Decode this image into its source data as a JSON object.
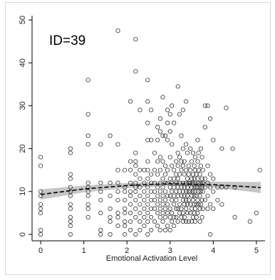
{
  "chart_data": {
    "type": "scatter",
    "annotation": "ID=39",
    "xlabel": "Emotional Activation Level",
    "ylabel": "",
    "xlim": [
      -0.2,
      5.2
    ],
    "ylim": [
      -1.5,
      51
    ],
    "x_ticks": [
      {
        "value": 0,
        "label": "0"
      },
      {
        "value": 1,
        "label": "1"
      },
      {
        "value": 2,
        "label": "2"
      },
      {
        "value": 3,
        "label": "3"
      },
      {
        "value": 4,
        "label": "4"
      },
      {
        "value": 5,
        "label": "5"
      }
    ],
    "y_ticks": [
      {
        "value": 0,
        "label": "0"
      },
      {
        "value": 10,
        "label": "10"
      },
      {
        "value": 20,
        "label": "20"
      },
      {
        "value": 30,
        "label": "30"
      },
      {
        "value": 40,
        "label": "40"
      },
      {
        "value": 50,
        "label": "50"
      }
    ],
    "grid": false,
    "marker": "hollow-circle",
    "colors": {
      "marker": "#333333",
      "fit_line": "#000000",
      "ci_band": "#b3b3b3",
      "axis": "#000000"
    },
    "points": [
      [
        0,
        18
      ],
      [
        0,
        16
      ],
      [
        0,
        10
      ],
      [
        0,
        9
      ],
      [
        0,
        7
      ],
      [
        0,
        6
      ],
      [
        0,
        5
      ],
      [
        0,
        1
      ],
      [
        0,
        0
      ],
      [
        0.69,
        20
      ],
      [
        0.69,
        19
      ],
      [
        0.69,
        14
      ],
      [
        0.69,
        13
      ],
      [
        0.69,
        11
      ],
      [
        0.69,
        10
      ],
      [
        0.69,
        9
      ],
      [
        0.69,
        7
      ],
      [
        0.69,
        6
      ],
      [
        0.69,
        4
      ],
      [
        0.69,
        3
      ],
      [
        0.69,
        2
      ],
      [
        0.69,
        0
      ],
      [
        1.1,
        36
      ],
      [
        1.1,
        28
      ],
      [
        1.1,
        23
      ],
      [
        1.1,
        21
      ],
      [
        1.1,
        12
      ],
      [
        1.1,
        11
      ],
      [
        1.1,
        10
      ],
      [
        1.1,
        9
      ],
      [
        1.1,
        7
      ],
      [
        1.1,
        6
      ],
      [
        1.1,
        4
      ],
      [
        1.39,
        21
      ],
      [
        1.39,
        12
      ],
      [
        1.39,
        10
      ],
      [
        1.39,
        8
      ],
      [
        1.39,
        5
      ],
      [
        1.39,
        1
      ],
      [
        1.39,
        0
      ],
      [
        1.61,
        23
      ],
      [
        1.61,
        12
      ],
      [
        1.61,
        9
      ],
      [
        1.61,
        6
      ],
      [
        1.61,
        4
      ],
      [
        1.61,
        3
      ],
      [
        1.61,
        0
      ],
      [
        1.79,
        47.5
      ],
      [
        1.79,
        21
      ],
      [
        1.79,
        15
      ],
      [
        1.79,
        12
      ],
      [
        1.79,
        10
      ],
      [
        1.79,
        8
      ],
      [
        1.79,
        5
      ],
      [
        1.79,
        4
      ],
      [
        1.79,
        2
      ],
      [
        1.95,
        15
      ],
      [
        1.95,
        11
      ],
      [
        1.95,
        10
      ],
      [
        1.95,
        8
      ],
      [
        1.95,
        6
      ],
      [
        1.95,
        5
      ],
      [
        1.95,
        3
      ],
      [
        1.95,
        2
      ],
      [
        1.95,
        0
      ],
      [
        2.08,
        31
      ],
      [
        2.08,
        17
      ],
      [
        2.08,
        15
      ],
      [
        2.08,
        12
      ],
      [
        2.08,
        10
      ],
      [
        2.08,
        9
      ],
      [
        2.08,
        7
      ],
      [
        2.08,
        5
      ],
      [
        2.08,
        3
      ],
      [
        2.08,
        1
      ],
      [
        2.2,
        45.5
      ],
      [
        2.2,
        38
      ],
      [
        2.2,
        19
      ],
      [
        2.2,
        17
      ],
      [
        2.2,
        16
      ],
      [
        2.2,
        14
      ],
      [
        2.2,
        12
      ],
      [
        2.2,
        11
      ],
      [
        2.2,
        10
      ],
      [
        2.2,
        8
      ],
      [
        2.2,
        6
      ],
      [
        2.2,
        4
      ],
      [
        2.2,
        0
      ],
      [
        2.3,
        29
      ],
      [
        2.3,
        15
      ],
      [
        2.3,
        13
      ],
      [
        2.3,
        11
      ],
      [
        2.3,
        9
      ],
      [
        2.3,
        7
      ],
      [
        2.3,
        5
      ],
      [
        2.3,
        3
      ],
      [
        2.3,
        1
      ],
      [
        2.4,
        15
      ],
      [
        2.4,
        12
      ],
      [
        2.4,
        10
      ],
      [
        2.4,
        8
      ],
      [
        2.4,
        6
      ],
      [
        2.4,
        4
      ],
      [
        2.4,
        2
      ],
      [
        2.48,
        36
      ],
      [
        2.48,
        31
      ],
      [
        2.48,
        26
      ],
      [
        2.48,
        22
      ],
      [
        2.48,
        17
      ],
      [
        2.48,
        15
      ],
      [
        2.48,
        13
      ],
      [
        2.48,
        11
      ],
      [
        2.48,
        9
      ],
      [
        2.48,
        7
      ],
      [
        2.48,
        5
      ],
      [
        2.48,
        3
      ],
      [
        2.48,
        0
      ],
      [
        2.56,
        29
      ],
      [
        2.56,
        22
      ],
      [
        2.56,
        14
      ],
      [
        2.56,
        12
      ],
      [
        2.56,
        10
      ],
      [
        2.56,
        8
      ],
      [
        2.56,
        6
      ],
      [
        2.56,
        4
      ],
      [
        2.56,
        1
      ],
      [
        2.64,
        19
      ],
      [
        2.64,
        15
      ],
      [
        2.64,
        12
      ],
      [
        2.64,
        10
      ],
      [
        2.64,
        8
      ],
      [
        2.64,
        6
      ],
      [
        2.64,
        3
      ],
      [
        2.71,
        25
      ],
      [
        2.71,
        22
      ],
      [
        2.71,
        17
      ],
      [
        2.71,
        14
      ],
      [
        2.71,
        11
      ],
      [
        2.71,
        9
      ],
      [
        2.71,
        7
      ],
      [
        2.71,
        5
      ],
      [
        2.71,
        2
      ],
      [
        2.77,
        27
      ],
      [
        2.77,
        24
      ],
      [
        2.77,
        18
      ],
      [
        2.77,
        15
      ],
      [
        2.77,
        12
      ],
      [
        2.77,
        10
      ],
      [
        2.77,
        8
      ],
      [
        2.77,
        6
      ],
      [
        2.77,
        4
      ],
      [
        2.77,
        1
      ],
      [
        2.83,
        32
      ],
      [
        2.83,
        23
      ],
      [
        2.83,
        17
      ],
      [
        2.83,
        13
      ],
      [
        2.83,
        11
      ],
      [
        2.83,
        9
      ],
      [
        2.83,
        7
      ],
      [
        2.83,
        5
      ],
      [
        2.83,
        3
      ],
      [
        2.89,
        23
      ],
      [
        2.89,
        16
      ],
      [
        2.89,
        14
      ],
      [
        2.89,
        12
      ],
      [
        2.89,
        10
      ],
      [
        2.89,
        8
      ],
      [
        2.89,
        6
      ],
      [
        2.89,
        4
      ],
      [
        2.89,
        1
      ],
      [
        2.94,
        29
      ],
      [
        2.94,
        26
      ],
      [
        2.94,
        22
      ],
      [
        2.94,
        15
      ],
      [
        2.94,
        12
      ],
      [
        2.94,
        9
      ],
      [
        2.94,
        7
      ],
      [
        2.94,
        5
      ],
      [
        2.94,
        2
      ],
      [
        3.0,
        28
      ],
      [
        3.0,
        24
      ],
      [
        3.0,
        18
      ],
      [
        3.0,
        13
      ],
      [
        3.0,
        11
      ],
      [
        3.0,
        9
      ],
      [
        3.0,
        6
      ],
      [
        3.0,
        4
      ],
      [
        3.0,
        1
      ],
      [
        3.04,
        30
      ],
      [
        3.04,
        21
      ],
      [
        3.04,
        16
      ],
      [
        3.04,
        12
      ],
      [
        3.04,
        10
      ],
      [
        3.04,
        8
      ],
      [
        3.04,
        5
      ],
      [
        3.04,
        3
      ],
      [
        3.09,
        26
      ],
      [
        3.09,
        15
      ],
      [
        3.09,
        13
      ],
      [
        3.09,
        11
      ],
      [
        3.09,
        9
      ],
      [
        3.09,
        7
      ],
      [
        3.09,
        4
      ],
      [
        3.09,
        2
      ],
      [
        3.14,
        17
      ],
      [
        3.14,
        14
      ],
      [
        3.14,
        12
      ],
      [
        3.14,
        10
      ],
      [
        3.14,
        8
      ],
      [
        3.14,
        6
      ],
      [
        3.14,
        4
      ],
      [
        3.18,
        34.5
      ],
      [
        3.18,
        19
      ],
      [
        3.18,
        16
      ],
      [
        3.18,
        13
      ],
      [
        3.18,
        11
      ],
      [
        3.18,
        9
      ],
      [
        3.18,
        6
      ],
      [
        3.18,
        3
      ],
      [
        3.22,
        28
      ],
      [
        3.22,
        18
      ],
      [
        3.22,
        14
      ],
      [
        3.22,
        12
      ],
      [
        3.22,
        10
      ],
      [
        3.22,
        7
      ],
      [
        3.22,
        5
      ],
      [
        3.26,
        23
      ],
      [
        3.26,
        17
      ],
      [
        3.26,
        15
      ],
      [
        3.26,
        11
      ],
      [
        3.26,
        9
      ],
      [
        3.26,
        6
      ],
      [
        3.26,
        4
      ],
      [
        3.3,
        29
      ],
      [
        3.3,
        20
      ],
      [
        3.3,
        16
      ],
      [
        3.3,
        12
      ],
      [
        3.3,
        10
      ],
      [
        3.3,
        8
      ],
      [
        3.3,
        5
      ],
      [
        3.3,
        3
      ],
      [
        3.33,
        17
      ],
      [
        3.33,
        14
      ],
      [
        3.33,
        11
      ],
      [
        3.33,
        9
      ],
      [
        3.33,
        7
      ],
      [
        3.33,
        4
      ],
      [
        3.37,
        31
      ],
      [
        3.37,
        21
      ],
      [
        3.37,
        15
      ],
      [
        3.37,
        12
      ],
      [
        3.37,
        10
      ],
      [
        3.37,
        8
      ],
      [
        3.37,
        6
      ],
      [
        3.37,
        3
      ],
      [
        3.4,
        19
      ],
      [
        3.4,
        13
      ],
      [
        3.4,
        11
      ],
      [
        3.4,
        9
      ],
      [
        3.4,
        7
      ],
      [
        3.4,
        5
      ],
      [
        3.43,
        16
      ],
      [
        3.43,
        14
      ],
      [
        3.43,
        12
      ],
      [
        3.43,
        10
      ],
      [
        3.43,
        8
      ],
      [
        3.43,
        3
      ],
      [
        3.47,
        20
      ],
      [
        3.47,
        15
      ],
      [
        3.47,
        12
      ],
      [
        3.47,
        10
      ],
      [
        3.47,
        7
      ],
      [
        3.47,
        5
      ],
      [
        3.5,
        17
      ],
      [
        3.5,
        13
      ],
      [
        3.5,
        11
      ],
      [
        3.5,
        9
      ],
      [
        3.5,
        6
      ],
      [
        3.5,
        3
      ],
      [
        3.53,
        19
      ],
      [
        3.53,
        14
      ],
      [
        3.53,
        12
      ],
      [
        3.53,
        10
      ],
      [
        3.53,
        8
      ],
      [
        3.53,
        4
      ],
      [
        3.56,
        16
      ],
      [
        3.56,
        13
      ],
      [
        3.56,
        11
      ],
      [
        3.56,
        9
      ],
      [
        3.56,
        7
      ],
      [
        3.56,
        5
      ],
      [
        3.58,
        18
      ],
      [
        3.58,
        15
      ],
      [
        3.58,
        12
      ],
      [
        3.58,
        10
      ],
      [
        3.58,
        6
      ],
      [
        3.58,
        3
      ],
      [
        3.61,
        14
      ],
      [
        3.61,
        11
      ],
      [
        3.61,
        9
      ],
      [
        3.61,
        7
      ],
      [
        3.61,
        4
      ],
      [
        3.64,
        22
      ],
      [
        3.64,
        17
      ],
      [
        3.64,
        13
      ],
      [
        3.64,
        11
      ],
      [
        3.64,
        8
      ],
      [
        3.64,
        5
      ],
      [
        3.66,
        19
      ],
      [
        3.66,
        15
      ],
      [
        3.66,
        12
      ],
      [
        3.66,
        10
      ],
      [
        3.66,
        7
      ],
      [
        3.69,
        14
      ],
      [
        3.69,
        11
      ],
      [
        3.69,
        9
      ],
      [
        3.69,
        6
      ],
      [
        3.69,
        3
      ],
      [
        3.71,
        20
      ],
      [
        3.71,
        16
      ],
      [
        3.71,
        12
      ],
      [
        3.71,
        10
      ],
      [
        3.71,
        7
      ],
      [
        3.74,
        18
      ],
      [
        3.74,
        13
      ],
      [
        3.74,
        11
      ],
      [
        3.74,
        8
      ],
      [
        3.74,
        4
      ],
      [
        3.76,
        15
      ],
      [
        3.76,
        12
      ],
      [
        3.76,
        10
      ],
      [
        3.76,
        6
      ],
      [
        3.81,
        30
      ],
      [
        3.81,
        25
      ],
      [
        3.81,
        13
      ],
      [
        3.81,
        11
      ],
      [
        3.81,
        8
      ],
      [
        3.87,
        30
      ],
      [
        3.87,
        16
      ],
      [
        3.87,
        12
      ],
      [
        3.87,
        9
      ],
      [
        3.87,
        6
      ],
      [
        3.93,
        27
      ],
      [
        3.93,
        14
      ],
      [
        3.93,
        11
      ],
      [
        3.93,
        7
      ],
      [
        3.93,
        0
      ],
      [
        4.0,
        22
      ],
      [
        4.0,
        13
      ],
      [
        4.0,
        10
      ],
      [
        4.0,
        6
      ],
      [
        4.1,
        11
      ],
      [
        4.1,
        8
      ],
      [
        4.2,
        20
      ],
      [
        4.2,
        11
      ],
      [
        4.2,
        7
      ],
      [
        4.3,
        29.5
      ],
      [
        4.3,
        11
      ],
      [
        4.45,
        20
      ],
      [
        4.5,
        11
      ],
      [
        4.5,
        4
      ],
      [
        4.85,
        3
      ],
      [
        5.0,
        5
      ],
      [
        5.08,
        15
      ]
    ],
    "fit_line": [
      [
        0,
        9.3
      ],
      [
        1,
        10.6
      ],
      [
        2,
        11.4
      ],
      [
        3,
        11.8
      ],
      [
        4,
        11.6
      ],
      [
        5,
        11.0
      ],
      [
        5.1,
        10.9
      ]
    ],
    "ci_upper": [
      [
        0,
        10.5
      ],
      [
        1,
        11.4
      ],
      [
        2,
        12.0
      ],
      [
        3,
        12.3
      ],
      [
        4,
        12.3
      ],
      [
        5,
        12.2
      ],
      [
        5.1,
        12.2
      ]
    ],
    "ci_lower": [
      [
        0,
        8.1
      ],
      [
        1,
        9.8
      ],
      [
        2,
        10.8
      ],
      [
        3,
        11.3
      ],
      [
        4,
        10.9
      ],
      [
        5,
        9.8
      ],
      [
        5.1,
        9.6
      ]
    ]
  }
}
